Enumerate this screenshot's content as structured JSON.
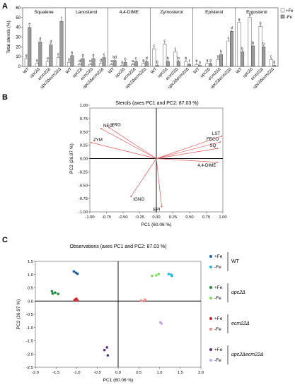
{
  "panel_labels": {
    "a": "A",
    "b": "B",
    "c": "C"
  },
  "chart_data": [
    {
      "type": "bar",
      "panel": "A",
      "ylabel": "Total sterols (%)",
      "ylim": [
        0,
        60
      ],
      "yticks": [
        0,
        10,
        20,
        30,
        40,
        50,
        60
      ],
      "strains": [
        "WT",
        "upc2Δ",
        "ecm22Δ",
        "upc2Δecm22Δ"
      ],
      "strain_italic": [
        false,
        true,
        true,
        true
      ],
      "legend": {
        "position": "right",
        "items": [
          {
            "label": "+Fe",
            "color": "#ffffff"
          },
          {
            "label": "-Fe",
            "color": "#9a9a9a"
          }
        ]
      },
      "groups": [
        {
          "name": "Squalene",
          "plus_fe": [
            8,
            3,
            5,
            9
          ],
          "minus_fe": [
            40,
            25,
            22,
            46
          ],
          "letters_plus": [
            "a",
            "a",
            "a",
            "e"
          ],
          "letters_minus": [
            "e",
            "d",
            "d",
            "f"
          ]
        },
        {
          "name": "Lanosterol",
          "plus_fe": [
            4,
            2,
            2,
            3
          ],
          "minus_fe": [
            11,
            8,
            8,
            9
          ],
          "letters_plus": [
            "a",
            "d",
            "e",
            "d"
          ],
          "letters_minus": [
            "b",
            "d",
            "d",
            "c"
          ]
        },
        {
          "name": "4,4-DIME",
          "plus_fe": [
            2,
            1,
            2,
            3
          ],
          "minus_fe": [
            6,
            4,
            5,
            5
          ],
          "letters_plus": [
            "a",
            "a",
            "a",
            "a"
          ],
          "letters_minus": [
            "bd",
            "b",
            "c",
            "d"
          ]
        },
        {
          "name": "Zymosterol",
          "plus_fe": [
            18,
            23,
            15,
            5
          ],
          "minus_fe": [
            1,
            5,
            5,
            2
          ],
          "letters_plus": [
            "c",
            "c",
            "c",
            "b"
          ],
          "letters_minus": [
            "b",
            "b",
            "b",
            "f"
          ]
        },
        {
          "name": "Episterol",
          "plus_fe": [
            2,
            3,
            7,
            26
          ],
          "minus_fe": [
            1,
            3,
            12,
            36
          ],
          "letters_plus": [
            "b",
            "a",
            "a",
            "c"
          ],
          "letters_minus": [
            "a",
            "a",
            "b",
            "d"
          ]
        },
        {
          "name": "Ergosterol",
          "plus_fe": [
            45,
            50,
            41,
            7
          ],
          "minus_fe": [
            15,
            21,
            20,
            1
          ],
          "letters_plus": [
            "a",
            "a",
            "b",
            "c"
          ],
          "letters_minus": [
            "b",
            "b",
            "b",
            "d"
          ]
        }
      ]
    },
    {
      "type": "biplot",
      "panel": "B",
      "title": "Sterols (axes PC1 and PC2: 87.03 %)",
      "xlabel": "PC1 (60.06 %)",
      "ylabel": "PC2 (26.97 %)",
      "xlim": [
        -1.0,
        1.0
      ],
      "ylim": [
        -1.0,
        1.0
      ],
      "xticks": [
        -1.0,
        -0.75,
        -0.5,
        -0.25,
        0,
        0.25,
        0.5,
        0.75,
        1
      ],
      "yticks": [
        -1.0,
        -0.75,
        -0.5,
        -0.25,
        0,
        0.25,
        0.5,
        0.75,
        1
      ],
      "xtick_labels": [
        "-1.00",
        "-0.75",
        "-0.50",
        "-0.25",
        "0.00",
        "0.25",
        "0.50",
        "0.75",
        "1.00"
      ],
      "ytick_labels": [
        "-1.00",
        "-0.75",
        "-0.50",
        "-0.25",
        "0.00",
        "0.25",
        "0.50",
        "0.75",
        "1.00"
      ],
      "vector_color": "#e05a5a",
      "vectors": [
        {
          "label": "NEO",
          "x": -0.83,
          "y": 0.56
        },
        {
          "label": "ERG",
          "x": -0.71,
          "y": 0.58
        },
        {
          "label": "ZYM",
          "x": -0.98,
          "y": 0.3
        },
        {
          "label": "LST",
          "x": 0.98,
          "y": 0.42
        },
        {
          "label": "FECO",
          "x": 0.96,
          "y": 0.31
        },
        {
          "label": "SQ",
          "x": 0.92,
          "y": 0.19
        },
        {
          "label": "4,4-DIME",
          "x": 0.92,
          "y": -0.07
        },
        {
          "label": "IGNO",
          "x": -0.38,
          "y": -0.71
        },
        {
          "label": "EPI",
          "x": 0.08,
          "y": -0.9
        }
      ]
    },
    {
      "type": "scatter",
      "panel": "C",
      "title": "Observations (axes PC1 and PC2: 87.03 %)",
      "xlabel": "PC1 (60.06 %)",
      "ylabel": "PC2 (26.97 %)",
      "xlim": [
        -2.0,
        2.0
      ],
      "ylim": [
        -2.5,
        1.5
      ],
      "xticks": [
        -2.0,
        -1.5,
        -1.0,
        -0.5,
        0,
        0.5,
        1.0,
        1.5,
        2.0
      ],
      "yticks": [
        -2.5,
        -2.0,
        -1.5,
        -1.0,
        -0.5,
        0,
        0.5,
        1.0,
        1.5
      ],
      "xtick_labels": [
        "-2.0",
        "-1.5",
        "-1.0",
        "-0.5",
        "0.0",
        "0.5",
        "1.0",
        "1.5",
        "2.0"
      ],
      "ytick_labels": [
        "-2.5",
        "-2.0",
        "-1.5",
        "-1.0",
        "-0.5",
        "0.0",
        "0.5",
        "1.0",
        "1.5"
      ],
      "legend": [
        {
          "strain": "WT",
          "italic": false,
          "items": [
            {
              "label": "+Fe",
              "color": "#1f5fa8"
            },
            {
              "label": "-Fe",
              "color": "#27b7e0"
            }
          ]
        },
        {
          "strain": "upc2Δ",
          "italic": true,
          "items": [
            {
              "label": "+Fe",
              "color": "#1e8a3a"
            },
            {
              "label": "-Fe",
              "color": "#7ed957"
            }
          ]
        },
        {
          "strain": "ecm22Δ",
          "italic": true,
          "items": [
            {
              "label": "+Fe",
              "color": "#d0202a"
            },
            {
              "label": "-Fe",
              "color": "#f08a8a"
            }
          ]
        },
        {
          "strain": "upc2Δecm22Δ",
          "italic": true,
          "items": [
            {
              "label": "+Fe",
              "color": "#5b2d82"
            },
            {
              "label": "-Fe",
              "color": "#c9a6e0"
            }
          ]
        }
      ],
      "series": [
        {
          "name": "WT +Fe",
          "color": "#1f5fa8",
          "points": [
            [
              -1.07,
              1.12
            ],
            [
              -0.98,
              1.03
            ],
            [
              -1.02,
              1.07
            ]
          ]
        },
        {
          "name": "WT -Fe",
          "color": "#27b7e0",
          "points": [
            [
              1.22,
              1.02
            ],
            [
              1.3,
              0.95
            ],
            [
              1.28,
              1.0
            ]
          ]
        },
        {
          "name": "upc2Δ +Fe",
          "color": "#1e8a3a",
          "points": [
            [
              -1.6,
              0.37
            ],
            [
              -1.52,
              0.32
            ],
            [
              -1.45,
              0.27
            ],
            [
              -1.58,
              0.28
            ]
          ]
        },
        {
          "name": "upc2Δ -Fe",
          "color": "#7ed957",
          "points": [
            [
              0.82,
              0.95
            ],
            [
              0.98,
              1.02
            ],
            [
              0.92,
              0.97
            ]
          ]
        },
        {
          "name": "ecm22Δ +Fe",
          "color": "#d0202a",
          "points": [
            [
              -1.05,
              0.05
            ],
            [
              -0.98,
              0.02
            ],
            [
              -1.01,
              0.09
            ]
          ]
        },
        {
          "name": "ecm22Δ -Fe",
          "color": "#f08a8a",
          "points": [
            [
              0.55,
              0.02
            ],
            [
              0.65,
              0.05
            ],
            [
              0.62,
              0.0
            ]
          ]
        },
        {
          "name": "upc2Δecm22Δ +Fe",
          "color": "#5b2d82",
          "points": [
            [
              -0.27,
              -1.75
            ],
            [
              -0.33,
              -1.85
            ],
            [
              -0.25,
              -2.05
            ]
          ]
        },
        {
          "name": "upc2Δecm22Δ -Fe",
          "color": "#c9a6e0",
          "points": [
            [
              1.02,
              -0.8
            ],
            [
              1.05,
              -0.85
            ]
          ]
        }
      ]
    }
  ]
}
